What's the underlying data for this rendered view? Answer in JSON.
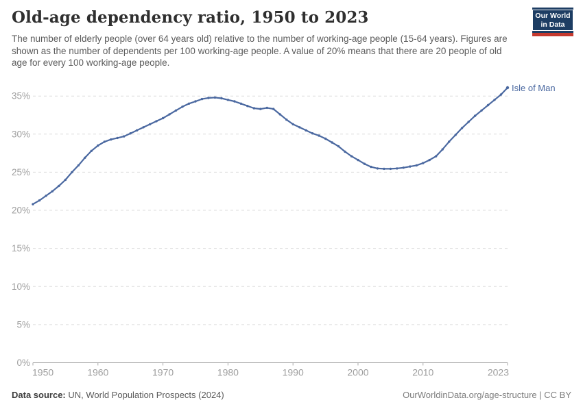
{
  "header": {
    "title": "Old-age dependency ratio, 1950 to 2023",
    "subtitle": "The number of elderly people (over 64 years old) relative to the number of working-age people (15-64 years). Figures are shown as the number of dependents per 100 working-age people. A value of 20% means that there are 20 people of old age for every 100 working-age people."
  },
  "logo": {
    "line1": "Our World",
    "line2": "in Data",
    "bg_color": "#1d3d63",
    "bar_color": "#c5392f"
  },
  "chart_data": {
    "type": "line",
    "title": "Old-age dependency ratio, 1950 to 2023",
    "xlabel": "",
    "ylabel": "",
    "ylim": [
      0,
      37
    ],
    "yticks": [
      0,
      5,
      10,
      15,
      20,
      25,
      30,
      35
    ],
    "ytick_suffix": "%",
    "xticks": [
      1950,
      1960,
      1970,
      1980,
      1990,
      2000,
      2010,
      2023
    ],
    "grid": "horizontal-dashed",
    "legend_position": "end-of-line-label",
    "x": [
      1950,
      1951,
      1952,
      1953,
      1954,
      1955,
      1956,
      1957,
      1958,
      1959,
      1960,
      1961,
      1962,
      1963,
      1964,
      1965,
      1966,
      1967,
      1968,
      1969,
      1970,
      1971,
      1972,
      1973,
      1974,
      1975,
      1976,
      1977,
      1978,
      1979,
      1980,
      1981,
      1982,
      1983,
      1984,
      1985,
      1986,
      1987,
      1988,
      1989,
      1990,
      1991,
      1992,
      1993,
      1994,
      1995,
      1996,
      1997,
      1998,
      1999,
      2000,
      2001,
      2002,
      2003,
      2004,
      2005,
      2006,
      2007,
      2008,
      2009,
      2010,
      2011,
      2012,
      2013,
      2014,
      2015,
      2016,
      2017,
      2018,
      2019,
      2020,
      2021,
      2022,
      2023
    ],
    "series": [
      {
        "name": "Isle of Man",
        "color": "#4a68a0",
        "values": [
          20.8,
          21.3,
          21.9,
          22.5,
          23.2,
          24.0,
          25.0,
          25.9,
          26.9,
          27.8,
          28.5,
          29.0,
          29.3,
          29.5,
          29.7,
          30.1,
          30.5,
          30.9,
          31.3,
          31.7,
          32.1,
          32.6,
          33.1,
          33.6,
          34.0,
          34.3,
          34.6,
          34.75,
          34.8,
          34.7,
          34.5,
          34.3,
          34.0,
          33.7,
          33.4,
          33.3,
          33.45,
          33.3,
          32.6,
          31.9,
          31.3,
          30.9,
          30.5,
          30.1,
          29.8,
          29.4,
          28.9,
          28.4,
          27.7,
          27.1,
          26.6,
          26.1,
          25.7,
          25.5,
          25.45,
          25.45,
          25.5,
          25.6,
          25.75,
          25.9,
          26.2,
          26.6,
          27.1,
          28.0,
          29.0,
          29.9,
          30.8,
          31.6,
          32.4,
          33.1,
          33.8,
          34.5,
          35.2,
          36.1
        ]
      }
    ]
  },
  "footer": {
    "source_label": "Data source:",
    "source_text": " UN, World Population Prospects (2024)",
    "rights": "OurWorldinData.org/age-structure | CC BY"
  }
}
